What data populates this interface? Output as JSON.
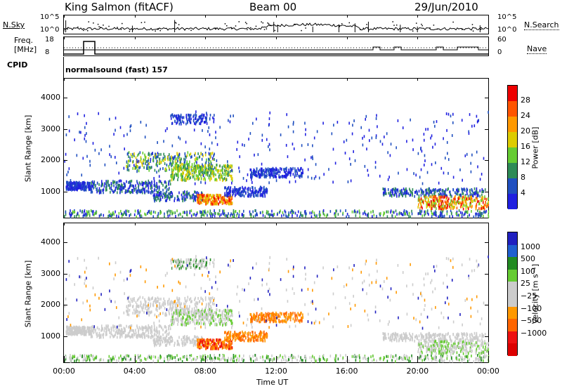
{
  "header": {
    "station": "King Salmon (fitACF)",
    "beam": "Beam 00",
    "date": "29/Jun/2010"
  },
  "status": {
    "nsky_label": "N.Sky",
    "nsky_ticks": [
      "10^5",
      "10^0"
    ],
    "nsearch_label": "N.Search",
    "nsearch_ticks": [
      "10^5",
      "10^0"
    ],
    "freq_label": [
      "Freq.",
      "[MHz]"
    ],
    "freq_ticks": [
      "18",
      "8"
    ],
    "nave_label": "Nave",
    "nave_ticks": [
      "60",
      "0"
    ],
    "cpid_label": "CPID",
    "cpid_text": "normalsound (fast) 157"
  },
  "colors": {
    "power": [
      "#2020e0",
      "#2050c0",
      "#2e8b57",
      "#66cc33",
      "#ddcc00",
      "#ff9900",
      "#ff5500",
      "#ee0000"
    ],
    "velocity": [
      "#2020c0",
      "#2060d0",
      "#228b22",
      "#66cc33",
      "#cccccc",
      "#cccccc",
      "#ff9900",
      "#ff6600",
      "#ee1111",
      "#dd0000"
    ]
  },
  "chart_data": [
    {
      "type": "heatmap",
      "name": "power",
      "ylabel": "Slant Range [km]",
      "ylim": [
        180,
        4600
      ],
      "yticks": [
        "1000",
        "2000",
        "3000",
        "4000"
      ],
      "ytick_values": [
        1000,
        2000,
        3000,
        4000
      ],
      "colorbar_label": "Power [dB]",
      "colorbar_ticks": [
        "4",
        "8",
        "12",
        "16",
        "20",
        "24",
        "28"
      ],
      "colorbar_range": [
        0,
        32
      ]
    },
    {
      "type": "heatmap",
      "name": "velocity",
      "ylabel": "Slant Range [km]",
      "ylim": [
        180,
        4600
      ],
      "yticks": [
        "1000",
        "2000",
        "3000",
        "4000"
      ],
      "ytick_values": [
        1000,
        2000,
        3000,
        4000
      ],
      "colorbar_label": "Velocity [m s⁻¹]",
      "colorbar_ticks": [
        "1000",
        "500",
        "100",
        "25",
        "−25",
        "−100",
        "−500",
        "−1000"
      ],
      "xlabel": "Time UT",
      "xticks": [
        "00:00",
        "04:00",
        "08:00",
        "12:00",
        "16:00",
        "20:00",
        "00:00"
      ],
      "xtick_values": [
        0,
        4,
        8,
        12,
        16,
        20,
        24
      ],
      "xlim": [
        0,
        24
      ]
    }
  ]
}
